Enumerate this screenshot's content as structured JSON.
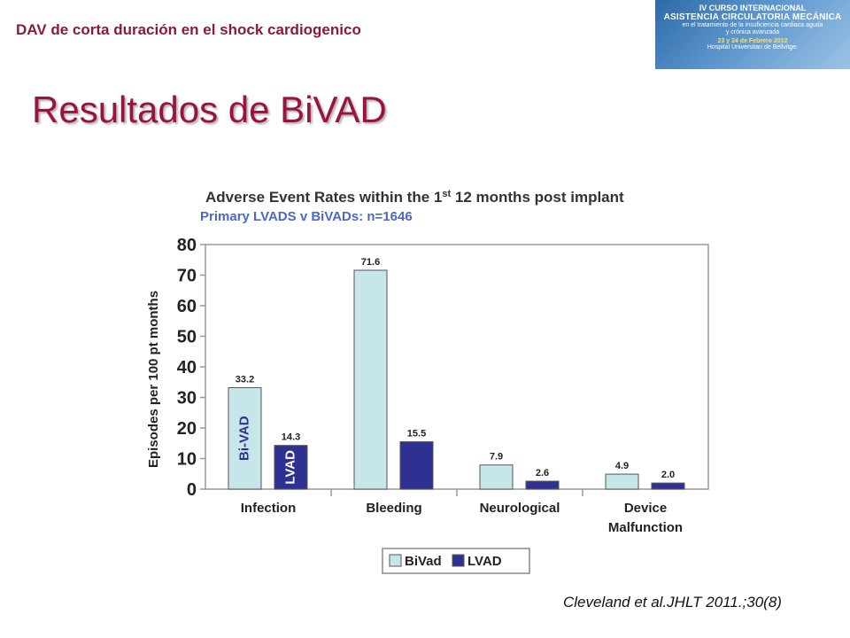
{
  "header": {
    "text": "DAV de corta duración en el shock cardiogenico"
  },
  "banner": {
    "line1": "IV CURSO INTERNACIONAL",
    "line2": "ASISTENCIA CIRCULATORIA MECÁNICA",
    "line3": "en el tratamiento de la insuficiencia cardiaca aguda",
    "line4": "y crónica avanzada",
    "line5": "23 y 24 de Febrero 2012",
    "line6": "Hospital Universitari de Bellvitge."
  },
  "slide": {
    "title": "Resultados de BiVAD",
    "citation": "Cleveland et al.JHLT 2011.;30(8)"
  },
  "colors": {
    "bivad": "#c6e6ea",
    "lvad": "#2e3192",
    "title": "#9b1240",
    "header": "#8b1a3a",
    "subtitle": "#4a69c6"
  },
  "chart_data": {
    "type": "bar",
    "title_main": "Adverse Event Rates within the 1",
    "title_sup": "st",
    "title_rest": " 12 months post implant",
    "subtitle": "Primary LVADS v BiVADs: n=1646",
    "ylabel": "Episodes per 100 pt months",
    "ylim": [
      0,
      80
    ],
    "yticks": [
      0,
      10,
      20,
      30,
      40,
      50,
      60,
      70,
      80
    ],
    "categories": [
      {
        "line1": "Infection",
        "line2": ""
      },
      {
        "line1": "Bleeding",
        "line2": ""
      },
      {
        "line1": "Neurological",
        "line2": ""
      },
      {
        "line1": "Device",
        "line2": "Malfunction"
      }
    ],
    "series": [
      {
        "name": "BiVad",
        "values": [
          33.2,
          71.6,
          7.9,
          4.9
        ],
        "labels": [
          "33.2",
          "71.6",
          "7.9",
          "4.9"
        ],
        "color": "#c6e6ea",
        "bar_text": "Bi-VAD",
        "bar_text_color": "#2e3192"
      },
      {
        "name": "LVAD",
        "values": [
          14.3,
          15.5,
          2.6,
          2.0
        ],
        "labels": [
          "14.3",
          "15.5",
          "2.6",
          "2.0"
        ],
        "color": "#2e3192",
        "bar_text": "LVAD",
        "bar_text_color": "#ffffff"
      }
    ],
    "grid": false,
    "legend": "bottom-center"
  }
}
